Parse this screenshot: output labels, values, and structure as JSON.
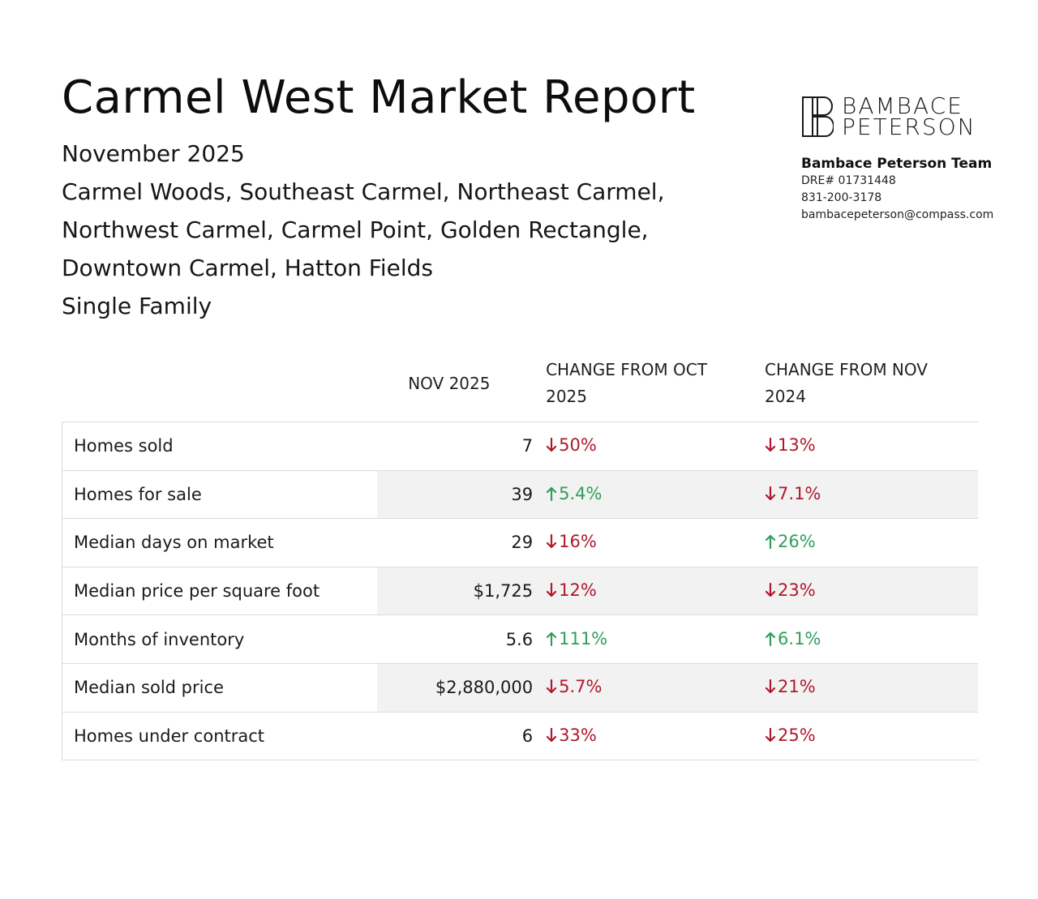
{
  "header": {
    "title": "Carmel West Market Report",
    "subtitle_lines": [
      "November 2025",
      "Carmel Woods, Southeast Carmel, Northeast Carmel,",
      "Northwest Carmel, Carmel Point, Golden Rectangle,",
      "Downtown Carmel, Hatton Fields",
      "Single Family"
    ]
  },
  "brand": {
    "logo_line1": "BAMBACE",
    "logo_line2": "PETERSON",
    "team": "Bambace Peterson Team",
    "dre": "DRE# 01731448",
    "phone": "831-200-3178",
    "email": "bambacepeterson@compass.com"
  },
  "table": {
    "headers": [
      "",
      "NOV 2025",
      "CHANGE FROM OCT 2025",
      "CHANGE FROM NOV 2024"
    ],
    "rows": [
      {
        "label": "Homes sold",
        "value": "7",
        "oct": {
          "text": "50%",
          "dir": "down"
        },
        "nov": {
          "text": "13%",
          "dir": "down"
        }
      },
      {
        "label": "Homes for sale",
        "value": "39",
        "oct": {
          "text": "5.4%",
          "dir": "up"
        },
        "nov": {
          "text": "7.1%",
          "dir": "down"
        }
      },
      {
        "label": "Median days on market",
        "value": "29",
        "oct": {
          "text": "16%",
          "dir": "down"
        },
        "nov": {
          "text": "26%",
          "dir": "up"
        }
      },
      {
        "label": "Median price per square foot",
        "value": "$1,725",
        "oct": {
          "text": "12%",
          "dir": "down"
        },
        "nov": {
          "text": "23%",
          "dir": "down"
        }
      },
      {
        "label": "Months of inventory",
        "value": "5.6",
        "oct": {
          "text": "111%",
          "dir": "up"
        },
        "nov": {
          "text": "6.1%",
          "dir": "up"
        }
      },
      {
        "label": "Median sold price",
        "value": "$2,880,000",
        "oct": {
          "text": "5.7%",
          "dir": "down"
        },
        "nov": {
          "text": "21%",
          "dir": "down"
        }
      },
      {
        "label": "Homes under contract",
        "value": "6",
        "oct": {
          "text": "33%",
          "dir": "down"
        },
        "nov": {
          "text": "25%",
          "dir": "down"
        }
      }
    ]
  },
  "colors": {
    "down": "#b0182c",
    "up": "#2f9e5a"
  }
}
